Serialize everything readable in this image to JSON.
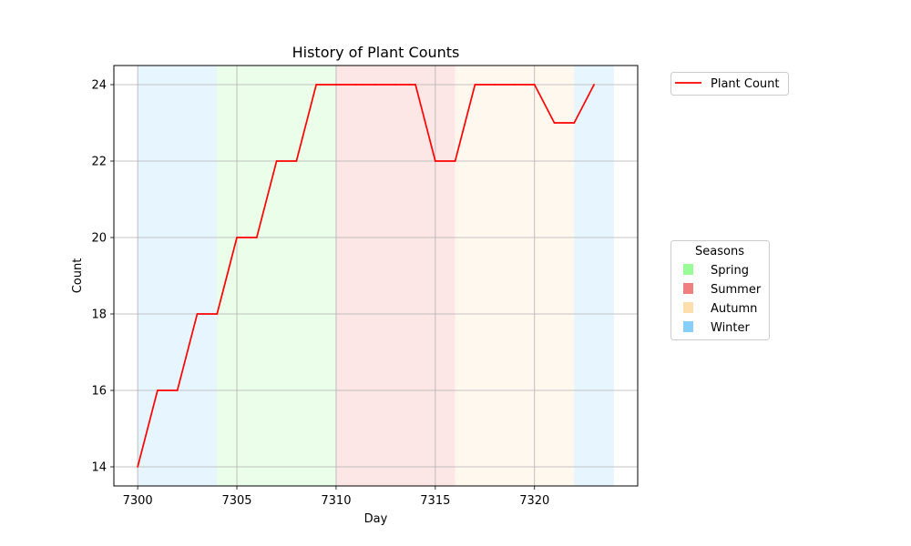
{
  "chart_data": {
    "type": "line",
    "title": "History of Plant Counts",
    "xlabel": "Day",
    "ylabel": "Count",
    "xlim": [
      7298.8,
      7325.2
    ],
    "ylim": [
      13.5,
      24.5
    ],
    "xticks": [
      7300,
      7305,
      7310,
      7315,
      7320
    ],
    "yticks": [
      14,
      16,
      18,
      20,
      22,
      24
    ],
    "grid": true,
    "x": [
      7300,
      7301,
      7302,
      7303,
      7304,
      7305,
      7306,
      7307,
      7308,
      7309,
      7310,
      7311,
      7312,
      7313,
      7314,
      7315,
      7316,
      7317,
      7318,
      7319,
      7320,
      7321,
      7322,
      7323
    ],
    "series": [
      {
        "name": "Plant Count",
        "color": "#ff0000",
        "values": [
          14,
          16,
          16,
          18,
          18,
          20,
          20,
          22,
          22,
          24,
          24,
          24,
          24,
          24,
          24,
          22,
          22,
          24,
          24,
          24,
          24,
          23,
          23,
          24
        ]
      }
    ],
    "series_legend": {
      "placement": "outside-top-right"
    },
    "seasons_legend": {
      "title": "Seasons",
      "placement": "outside-right-center",
      "items": [
        {
          "label": "Spring",
          "color": "#98fb98"
        },
        {
          "label": "Summer",
          "color": "#f08080"
        },
        {
          "label": "Autumn",
          "color": "#ffdead"
        },
        {
          "label": "Winter",
          "color": "#87cefa"
        }
      ]
    },
    "season_spans": [
      {
        "season": "Winter",
        "start": 7300,
        "end": 7304,
        "color": "#87cefa"
      },
      {
        "season": "Spring",
        "start": 7304,
        "end": 7310,
        "color": "#98fb98"
      },
      {
        "season": "Summer",
        "start": 7310,
        "end": 7316,
        "color": "#f08080"
      },
      {
        "season": "Autumn",
        "start": 7316,
        "end": 7322,
        "color": "#ffdead"
      },
      {
        "season": "Winter",
        "start": 7322,
        "end": 7324,
        "color": "#87cefa"
      }
    ]
  }
}
